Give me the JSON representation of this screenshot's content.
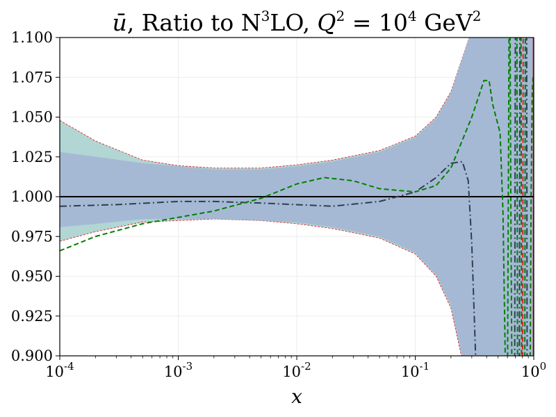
{
  "chart_data": {
    "type": "line",
    "title_parts": {
      "symbol": "ū",
      "ratio_text": ", Ratio to N",
      "order_sup": "3",
      "order_tail": "LO, ",
      "scale_var": "Q",
      "scale_var_sup": "2",
      "equals": " = 10",
      "scale_exp": "4",
      "unit": " GeV",
      "unit_sup": "2"
    },
    "xlabel": "x",
    "ylabel": "",
    "xscale": "log",
    "xlim": [
      0.0001,
      1
    ],
    "ylim": [
      0.9,
      1.1
    ],
    "grid": true,
    "yticks": [
      0.9,
      0.925,
      0.95,
      0.975,
      1.0,
      1.025,
      1.05,
      1.075,
      1.1
    ],
    "ytick_labels": [
      "0.900",
      "0.925",
      "0.950",
      "0.975",
      "1.000",
      "1.025",
      "1.050",
      "1.075",
      "1.100"
    ],
    "xticks": [
      {
        "value": 0.0001,
        "base": "10",
        "exp": "-4"
      },
      {
        "value": 0.001,
        "base": "10",
        "exp": "-3"
      },
      {
        "value": 0.01,
        "base": "10",
        "exp": "-2"
      },
      {
        "value": 0.1,
        "base": "10",
        "exp": "-1"
      },
      {
        "value": 1,
        "base": "10",
        "exp": "0"
      }
    ],
    "x": [
      0.0001,
      0.0002,
      0.0005,
      0.001,
      0.002,
      0.005,
      0.01,
      0.02,
      0.05,
      0.1,
      0.15,
      0.2,
      0.3,
      0.4,
      0.5
    ],
    "bands": [
      {
        "name": "band-teal",
        "color": "#a8d1cf",
        "edge_color": "#e02020",
        "upper": [
          1.048,
          1.035,
          1.023,
          1.0195,
          1.018,
          1.018,
          1.02,
          1.023,
          1.029,
          1.038,
          1.05,
          1.066,
          1.105,
          1.12,
          1.12
        ],
        "lower": [
          0.972,
          0.978,
          0.984,
          0.985,
          0.986,
          0.985,
          0.983,
          0.98,
          0.974,
          0.964,
          0.95,
          0.93,
          0.87,
          0.85,
          0.85
        ]
      },
      {
        "name": "band-blue",
        "color": "#a4b6d4",
        "edge_color": "#a9b9d4",
        "upper": [
          1.028,
          1.025,
          1.021,
          1.019,
          1.017,
          1.017,
          1.019,
          1.022,
          1.028,
          1.037,
          1.049,
          1.065,
          1.105,
          1.12,
          1.12
        ],
        "lower": [
          0.981,
          0.983,
          0.986,
          0.986,
          0.986,
          0.985,
          0.984,
          0.981,
          0.975,
          0.965,
          0.951,
          0.932,
          0.872,
          0.85,
          0.85
        ]
      }
    ],
    "series": [
      {
        "name": "reference-line",
        "color": "#000000",
        "style": "solid",
        "x": [
          0.0001,
          1
        ],
        "values": [
          1.0,
          1.0
        ]
      },
      {
        "name": "dark-dashdot",
        "color": "#2f3e4e",
        "style": "dashdot",
        "x": [
          0.0001,
          0.0003,
          0.001,
          0.002,
          0.005,
          0.01,
          0.02,
          0.05,
          0.1,
          0.15,
          0.2,
          0.25,
          0.28,
          0.3,
          0.33
        ],
        "values": [
          0.994,
          0.995,
          0.997,
          0.997,
          0.996,
          0.995,
          0.994,
          0.997,
          1.003,
          1.012,
          1.021,
          1.022,
          1.01,
          0.97,
          0.88
        ]
      },
      {
        "name": "green-dashed",
        "color": "#008000",
        "style": "dashed",
        "x": [
          0.0001,
          0.0002,
          0.0005,
          0.001,
          0.002,
          0.005,
          0.01,
          0.017,
          0.03,
          0.05,
          0.1,
          0.15,
          0.2,
          0.3,
          0.38,
          0.42,
          0.45,
          0.5,
          0.52,
          0.55,
          0.58
        ],
        "values": [
          0.966,
          0.975,
          0.983,
          0.987,
          0.991,
          0.999,
          1.008,
          1.012,
          1.01,
          1.005,
          1.003,
          1.007,
          1.018,
          1.05,
          1.073,
          1.073,
          1.058,
          1.045,
          1.04,
          0.99,
          0.88
        ]
      }
    ],
    "high_x_oscillations": [
      {
        "color": "#008000",
        "style": "dashed",
        "x": [
          0.6,
          0.61,
          0.62,
          0.63,
          0.64,
          0.655
        ],
        "values": [
          0.88,
          1.0,
          1.12,
          1.12,
          1.0,
          0.88
        ]
      },
      {
        "color": "#2f3e4e",
        "style": "dashdot",
        "x": [
          0.69,
          0.695,
          0.7,
          0.705
        ],
        "values": [
          0.88,
          1.0,
          1.12,
          1.12
        ]
      },
      {
        "color": "#008000",
        "style": "dashed",
        "x": [
          0.72,
          0.725,
          0.73
        ],
        "values": [
          1.12,
          1.0,
          0.88
        ]
      },
      {
        "color": "#2f3e4e",
        "style": "dashdot",
        "x": [
          0.755,
          0.76,
          0.765
        ],
        "values": [
          0.88,
          1.0,
          1.12
        ]
      },
      {
        "color": "#008000",
        "style": "dashed",
        "x": [
          0.78,
          0.785,
          0.79
        ],
        "values": [
          1.12,
          1.0,
          0.88
        ]
      },
      {
        "color": "#e02020",
        "style": "dashed",
        "x": [
          0.805,
          0.81,
          0.815
        ],
        "values": [
          0.88,
          1.0,
          1.12
        ]
      },
      {
        "color": "#008000",
        "style": "dashed",
        "x": [
          0.84,
          0.845,
          0.85
        ],
        "values": [
          0.88,
          1.0,
          1.12
        ]
      },
      {
        "color": "#2f3e4e",
        "style": "dashdot",
        "x": [
          0.87,
          0.875,
          0.88
        ],
        "values": [
          1.12,
          1.0,
          0.88
        ]
      },
      {
        "color": "#008000",
        "style": "dashed",
        "x": [
          0.93,
          0.95,
          0.97,
          0.985,
          1.0
        ],
        "values": [
          0.88,
          1.0,
          1.065,
          1.075,
          1.07
        ]
      },
      {
        "color": "#c02020",
        "style": "solid",
        "x": [
          0.995,
          0.995
        ],
        "values": [
          0.88,
          1.12
        ]
      }
    ]
  }
}
